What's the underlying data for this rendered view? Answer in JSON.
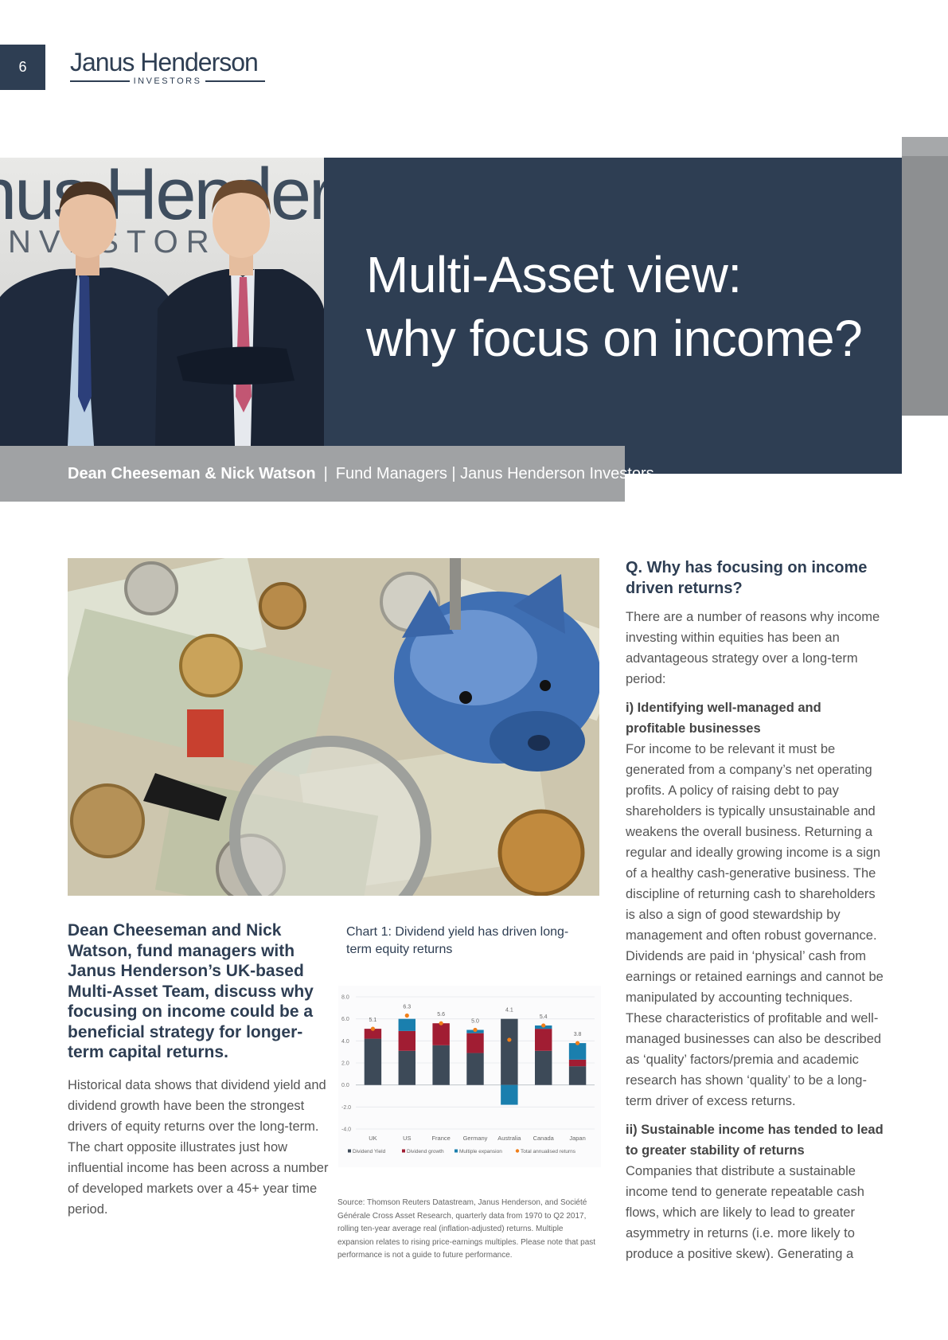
{
  "header": {
    "page_number": "6",
    "logo_brand": "Janus Henderson",
    "logo_sub": "INVESTORS"
  },
  "hero": {
    "title_line1": "Multi-Asset view:",
    "title_line2": "why focus on income?",
    "backdrop_text": "nus Henders",
    "backdrop_sub": "NVESTOR",
    "byline_names": "Dean Cheeseman & Nick Watson",
    "byline_sep": "|",
    "byline_role": "Fund Managers | Janus Henderson Investors"
  },
  "intro": {
    "heading": "Dean Cheeseman and Nick Watson, fund managers with Janus Henderson’s UK-based Multi-Asset Team, discuss why focusing on income could be a beneficial strategy for longer-term capital returns.",
    "body": "Historical data shows that dividend yield and dividend growth have been the strongest drivers of equity returns over the long-term. The chart opposite illustrates just how influential income has been across a number of developed markets over a 45+ year time period."
  },
  "chart": {
    "title": "Chart 1: Dividend yield has driven long-term equity returns",
    "source": "Source: Thomson Reuters Datastream, Janus Henderson, and Société Générale Cross Asset Research, quarterly data from 1970 to Q2 2017, rolling ten-year average real (inflation-adjusted) returns. Multiple expansion relates to rising price-earnings multiples. Please note that past performance is not a guide to future performance."
  },
  "chart_data": {
    "type": "bar",
    "stacked": true,
    "title": "Chart 1: Dividend yield has driven long-term equity returns",
    "categories": [
      "UK",
      "US",
      "France",
      "Germany",
      "Australia",
      "Canada",
      "Japan"
    ],
    "series": [
      {
        "name": "Dividend Yield",
        "color": "#3d4a58",
        "values": [
          4.2,
          3.1,
          3.6,
          2.9,
          6.0,
          3.1,
          1.7
        ]
      },
      {
        "name": "Dividend growth",
        "color": "#a11d33",
        "values": [
          0.9,
          1.8,
          2.0,
          1.8,
          0.0,
          2.0,
          0.6
        ]
      },
      {
        "name": "Multiple expansion",
        "color": "#1a7fae",
        "values": [
          0.0,
          1.1,
          0.0,
          0.3,
          -1.8,
          0.3,
          1.5
        ]
      }
    ],
    "markers": {
      "name": "Total annualised returns",
      "color": "#f07f1a",
      "values": [
        5.1,
        6.3,
        5.6,
        5.0,
        4.1,
        5.4,
        3.8
      ]
    },
    "data_labels": [
      "5.1",
      "6.3",
      "5.6",
      "5.0",
      "4.1",
      "5.4",
      "3.8"
    ],
    "ylim": [
      -4.0,
      8.0
    ],
    "yticks": [
      "8.0",
      "6.0",
      "4.0",
      "2.0",
      "0.0",
      "-2.0",
      "-4.0"
    ],
    "grid": true,
    "legend_position": "bottom"
  },
  "right": {
    "heading": "Q. Why has focusing on income driven returns?",
    "p1": "There are a number of reasons why income investing within equities has been an advantageous strategy over a long-term period:",
    "sub1": "i) Identifying well-managed and profitable businesses",
    "p2": "For income to be relevant it must be generated from a company’s net operating profits. A policy of raising debt to pay shareholders is typically unsustainable and weakens the overall business. Returning a regular and ideally growing income is a sign of a healthy cash-generative business. The discipline of returning cash to shareholders is also a sign of good stewardship by management and often robust governance. Dividends are paid in ‘physical’ cash from earnings or retained earnings and cannot be manipulated by accounting techniques. These characteristics of profitable and well-managed businesses can also be described as ‘quality’ factors/premia and academic research has shown ‘quality’ to be a long-term driver of excess returns.",
    "sub2": "ii) Sustainable income has tended to lead to greater stability of returns",
    "p3": "Companies that distribute a sustainable income tend to generate repeatable cash flows, which are likely to lead to greater asymmetry in returns (i.e. more likely to produce a positive skew). Generating a"
  }
}
